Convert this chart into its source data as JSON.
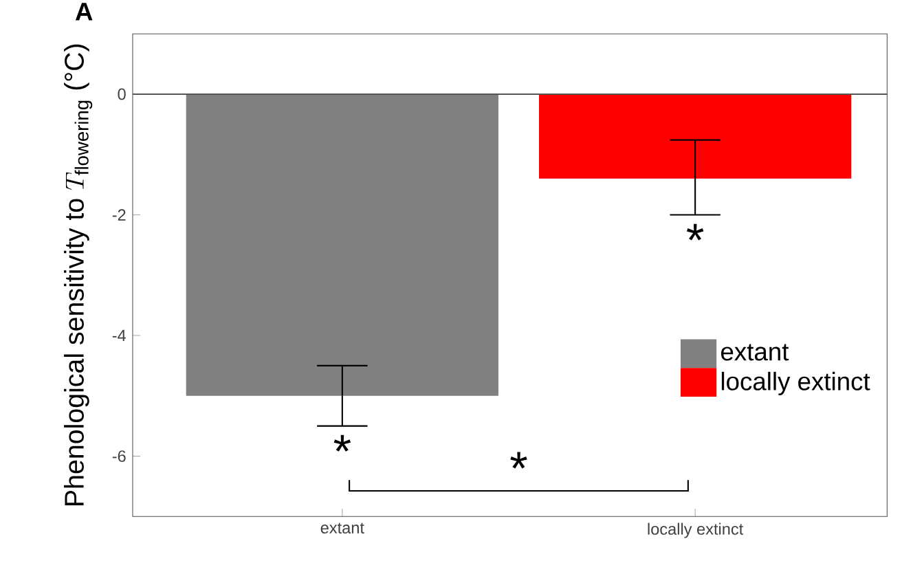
{
  "chart_data": {
    "type": "bar",
    "title": "A",
    "ylabel": "\\text{Phenological sensitivity to }T_{\\text{flowering}}\\text{ (°C)}",
    "categories": [
      "extant",
      "locally extinct"
    ],
    "series": [
      {
        "name": "extant",
        "color": "#808080",
        "values": [
          -5.0,
          null
        ],
        "errors": [
          [
            -5.5,
            -4.5
          ],
          null
        ]
      },
      {
        "name": "locally extinct",
        "color": "#ff0000",
        "values": [
          null,
          -1.4
        ],
        "errors": [
          null,
          [
            -2.0,
            -0.76
          ]
        ]
      }
    ],
    "ylim": [
      -7,
      1
    ],
    "yticks": [
      0,
      -2,
      -4,
      -6
    ],
    "ref_lines": [
      {
        "axis": "y",
        "value": 0,
        "color": "#555555"
      }
    ],
    "annotations": [
      "*",
      "*",
      "*"
    ],
    "grid": false,
    "legend": "bottom right"
  }
}
